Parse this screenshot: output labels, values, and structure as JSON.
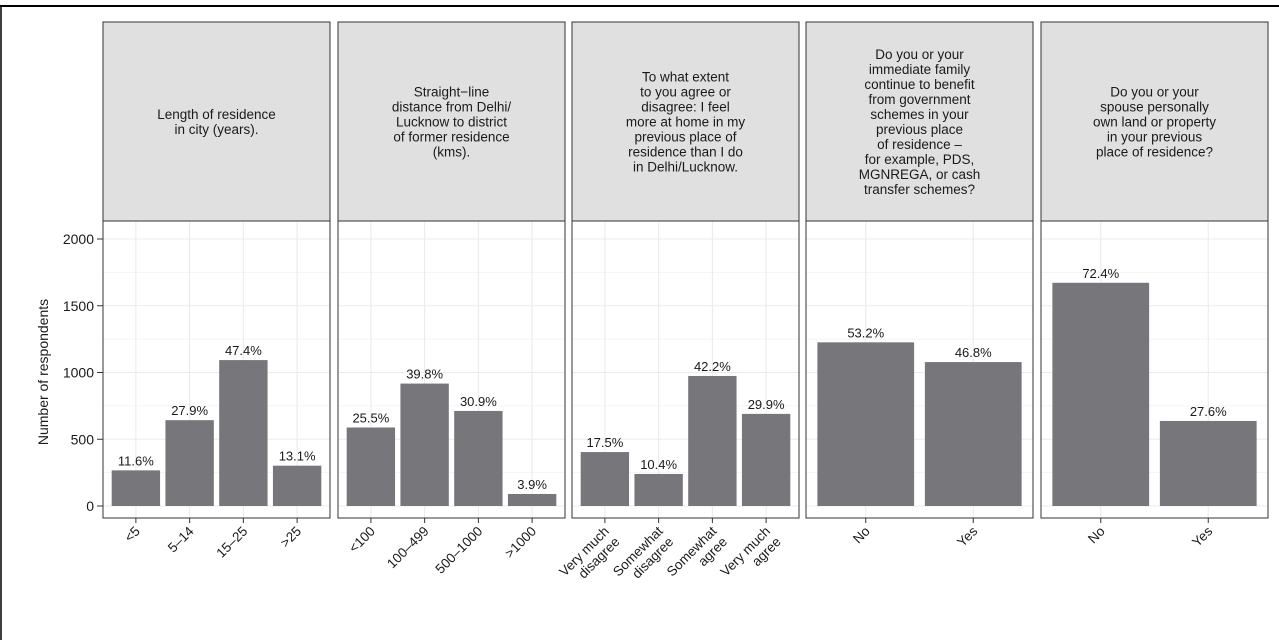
{
  "ylabel": "Number of respondents",
  "y_ticks": [
    "0",
    "500",
    "1000",
    "1500",
    "2000"
  ],
  "bar_color": "#77777b",
  "strip_color": "#e0e0e0",
  "chart_data": [
    {
      "type": "bar",
      "title": "Length of residence\nin city (years).",
      "categories": [
        "<5",
        "5–14",
        "15–25",
        ">25"
      ],
      "values": [
        267,
        643,
        1093,
        302
      ],
      "labels": [
        "11.6%",
        "27.9%",
        "47.4%",
        "13.1%"
      ],
      "ylim": [
        0,
        2000
      ]
    },
    {
      "type": "bar",
      "title": "Straight−line\ndistance from Delhi/\nLucknow to district\nof former residence\n(kms).",
      "categories": [
        "<100",
        "100–499",
        "500–1000",
        ">1000"
      ],
      "values": [
        588,
        917,
        712,
        90
      ],
      "labels": [
        "25.5%",
        "39.8%",
        "30.9%",
        "3.9%"
      ],
      "ylim": [
        0,
        2000
      ]
    },
    {
      "type": "bar",
      "title": "To what extent\nto you agree or\ndisagree: I feel\nmore at home in my\nprevious place of\nresidence than I do\nin Delhi/Lucknow.",
      "categories": [
        "Very much\ndisagree",
        "Somewhat\ndisagree",
        "Somewhat\nagree",
        "Very much\nagree"
      ],
      "values": [
        404,
        240,
        974,
        690
      ],
      "labels": [
        "17.5%",
        "10.4%",
        "42.2%",
        "29.9%"
      ],
      "ylim": [
        0,
        2000
      ]
    },
    {
      "type": "bar",
      "title": "Do you or your\nimmediate family\ncontinue to benefit\nfrom government\nschemes in your\nprevious place\nof residence –\nfor example, PDS,\nMGNREGA, or cash\ntransfer schemes?",
      "categories": [
        "No",
        "Yes"
      ],
      "values": [
        1226,
        1078
      ],
      "labels": [
        "53.2%",
        "46.8%"
      ],
      "ylim": [
        0,
        2000
      ]
    },
    {
      "type": "bar",
      "title": "Do you or your\nspouse personally\nown land or property\nin your previous\nplace of residence?",
      "categories": [
        "No",
        "Yes"
      ],
      "values": [
        1672,
        637
      ],
      "labels": [
        "72.4%",
        "27.6%"
      ],
      "ylim": [
        0,
        2000
      ]
    }
  ]
}
